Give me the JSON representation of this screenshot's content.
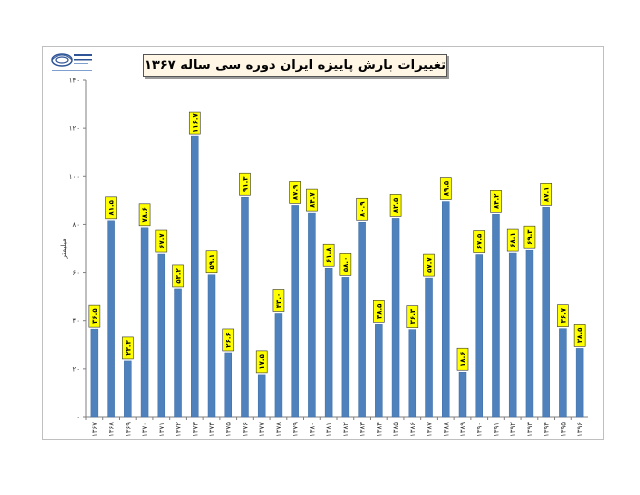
{
  "title": "تغییرات بارش پاییزه ایران دوره سی ساله ۱۳۶۷ لغایت ۱۳۹۶",
  "logo": "logo-emblem",
  "colors": {
    "bar": "#4f81bd",
    "bar_edge": "#3d6ea6",
    "label_bg": "#ffff00",
    "label_border": "#333333",
    "grid": "#bfbfbf",
    "title_bg": "#fff6e6"
  },
  "chart_data": {
    "type": "bar",
    "title": "تغییرات بارش پاییزه ایران دوره سی ساله ۱۳۶۷ لغایت ۱۳۹۶",
    "xlabel": "",
    "ylabel": "میلیمتر",
    "ylim": [
      0,
      140
    ],
    "yticks": [
      "۰",
      "۲۰",
      "۴۰",
      "۶۰",
      "۸۰",
      "۱۰۰",
      "۱۲۰",
      "۱۴۰"
    ],
    "grid": "none",
    "categories": [
      "۱۳۶۷",
      "۱۳۶۸",
      "۱۳۶۹",
      "۱۳۷۰",
      "۱۳۷۱",
      "۱۳۷۲",
      "۱۳۷۳",
      "۱۳۷۴",
      "۱۳۷۵",
      "۱۳۷۶",
      "۱۳۷۷",
      "۱۳۷۸",
      "۱۳۷۹",
      "۱۳۸۰",
      "۱۳۸۱",
      "۱۳۸۲",
      "۱۳۸۳",
      "۱۳۸۴",
      "۱۳۸۵",
      "۱۳۸۶",
      "۱۳۸۷",
      "۱۳۸۸",
      "۱۳۸۹",
      "۱۳۹۰",
      "۱۳۹۱",
      "۱۳۹۲",
      "۱۳۹۳",
      "۱۳۹۴",
      "۱۳۹۵",
      "۱۳۹۶"
    ],
    "values": [
      36.5,
      81.5,
      23.3,
      78.6,
      67.7,
      53.2,
      116.7,
      59.1,
      26.6,
      91.3,
      17.5,
      43.0,
      87.9,
      84.7,
      61.8,
      58.0,
      80.9,
      38.5,
      82.5,
      36.3,
      57.7,
      89.5,
      18.6,
      67.5,
      84.2,
      68.1,
      69.3,
      87.1,
      36.7,
      28.5
    ],
    "value_labels": [
      "۳۶.۵",
      "۸۱.۵",
      "۲۳.۳",
      "۷۸.۶",
      "۶۷.۷",
      "۵۳.۲",
      "۱۱۶.۷",
      "۵۹.۱",
      "۲۶.۶",
      "۹۱.۳",
      "۱۷.۵",
      "۴۳.۰",
      "۸۷.۹",
      "۸۴.۷",
      "۶۱.۸",
      "۵۸.۰",
      "۸۰.۹",
      "۳۸.۵",
      "۸۲.۵",
      "۳۶.۳",
      "۵۷.۷",
      "۸۹.۵",
      "۱۸.۶",
      "۶۷.۵",
      "۸۴.۲",
      "۶۸.۱",
      "۶۹.۳",
      "۸۷.۱",
      "۳۶.۷",
      "۲۸.۵"
    ]
  }
}
